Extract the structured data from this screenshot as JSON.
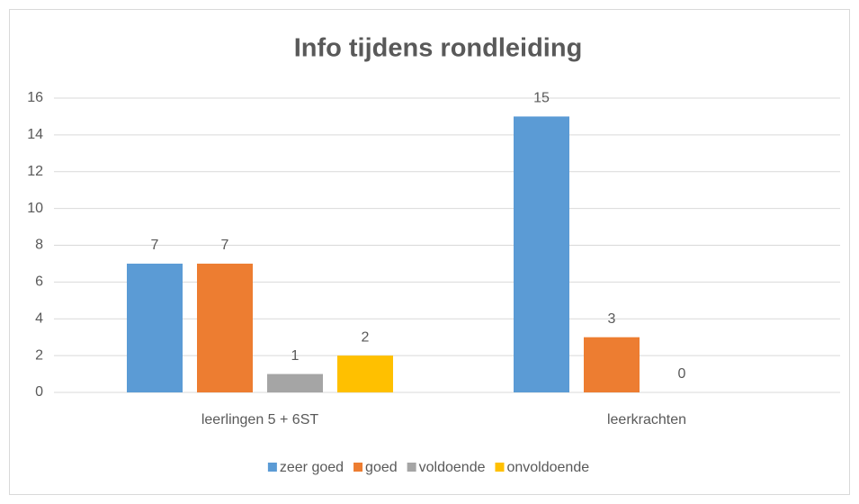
{
  "chart_data": {
    "type": "bar",
    "title": "Info tijdens rondleiding",
    "categories": [
      "leerlingen 5 + 6ST",
      "leerkrachten"
    ],
    "series": [
      {
        "name": "zeer goed",
        "color": "#5b9bd5",
        "values": [
          7,
          15
        ]
      },
      {
        "name": "goed",
        "color": "#ed7d31",
        "values": [
          7,
          3
        ]
      },
      {
        "name": "voldoende",
        "color": "#a5a5a5",
        "values": [
          1,
          0
        ]
      },
      {
        "name": "onvoldoende",
        "color": "#ffc000",
        "values": [
          2,
          null
        ]
      }
    ],
    "ylim": [
      0,
      16
    ],
    "yticks": [
      0,
      2,
      4,
      6,
      8,
      10,
      12,
      14,
      16
    ],
    "grid": true,
    "legend": "bottom"
  }
}
